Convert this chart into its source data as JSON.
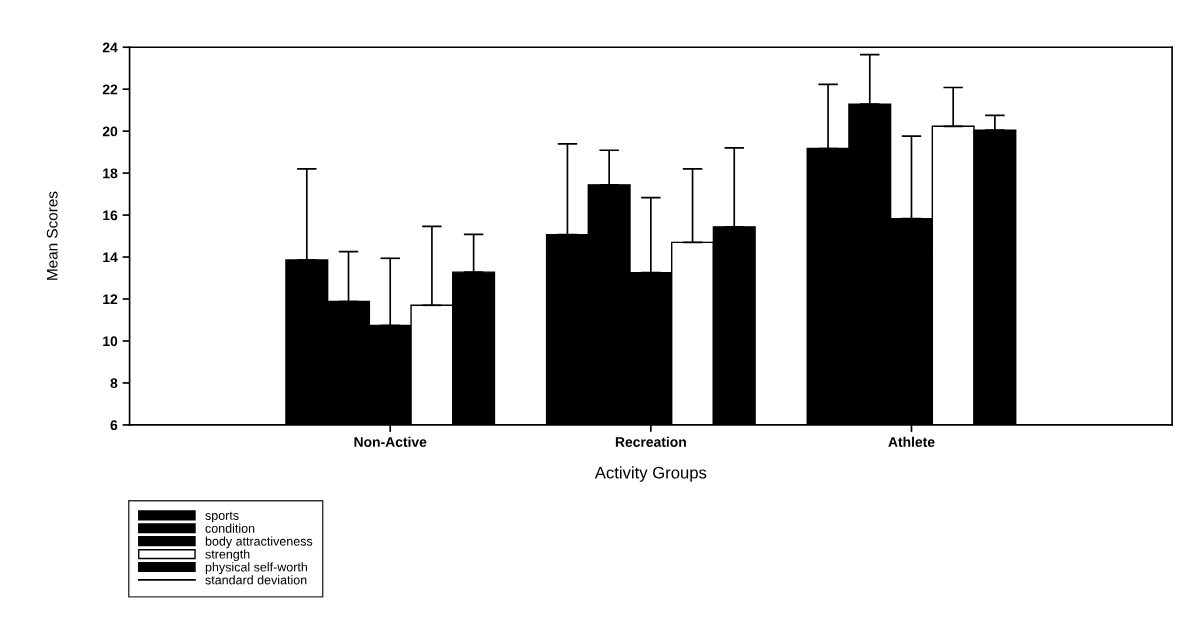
{
  "chart_data": {
    "type": "bar",
    "xlabel": "Activity Groups",
    "ylabel": "Mean Scores",
    "categories": [
      "Non-Active",
      "Recreation",
      "Athlete"
    ],
    "series": [
      {
        "name": "sports",
        "color": "#000000",
        "values": [
          13.86,
          15.07,
          19.17
        ],
        "errors": [
          [
            13.86,
            18.2
          ],
          [
            15.07,
            19.39
          ],
          [
            19.17,
            22.23
          ]
        ]
      },
      {
        "name": "condition",
        "color": "#000000",
        "values": [
          11.88,
          17.44,
          21.29
        ],
        "errors": [
          [
            11.88,
            14.26
          ],
          [
            17.44,
            19.09
          ],
          [
            21.29,
            23.65
          ]
        ]
      },
      {
        "name": "body attractiveness",
        "color": "#000000",
        "values": [
          10.74,
          13.26,
          15.83
        ],
        "errors": [
          [
            10.74,
            13.94
          ],
          [
            13.26,
            16.83
          ],
          [
            15.83,
            19.76
          ]
        ]
      },
      {
        "name": "strength",
        "color": "#ffffff",
        "values": [
          11.7,
          14.7,
          20.23
        ],
        "errors": [
          [
            11.7,
            15.46
          ],
          [
            14.7,
            18.2
          ],
          [
            20.23,
            22.08
          ]
        ]
      },
      {
        "name": "physical self-worth",
        "color": "#000000",
        "values": [
          13.28,
          15.44,
          20.05
        ],
        "errors": [
          [
            13.28,
            15.08
          ],
          [
            15.44,
            19.2
          ],
          [
            20.05,
            20.75
          ]
        ]
      },
      {
        "name": "standard deviation",
        "type": "line",
        "color": "#000000",
        "values": [
          null,
          null,
          null
        ]
      }
    ],
    "ylim": [
      6,
      24
    ],
    "yticks": [
      6,
      8,
      10,
      12,
      14,
      16,
      18,
      20,
      22,
      24
    ],
    "grid": false,
    "legend": "bottom left"
  }
}
